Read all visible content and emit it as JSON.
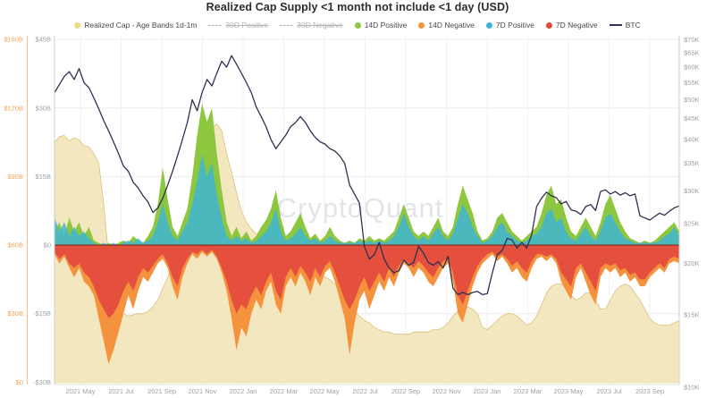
{
  "header": {
    "title": "Realized Cap Supply <1 month not include <1 day (USD)"
  },
  "watermark": "CryptoQuant",
  "legend": {
    "items": [
      {
        "label": "Realized Cap - Age Bands 1d-1m",
        "color": "#ecd98a",
        "type": "dot",
        "disabled": false
      },
      {
        "label": "30D Positive",
        "color": "#b7b7b7",
        "type": "dash",
        "disabled": true
      },
      {
        "label": "30D Negative",
        "color": "#b7b7b7",
        "type": "dash",
        "disabled": true
      },
      {
        "label": "14D Positive",
        "color": "#8dc63f",
        "type": "dot",
        "disabled": false
      },
      {
        "label": "14D Negative",
        "color": "#f5923e",
        "type": "dot",
        "disabled": false
      },
      {
        "label": "7D Positive",
        "color": "#3cb4d8",
        "type": "dot",
        "disabled": false
      },
      {
        "label": "7D Negative",
        "color": "#e2493d",
        "type": "dot",
        "disabled": false
      },
      {
        "label": "BTC",
        "color": "#2e3150",
        "type": "line",
        "disabled": false
      }
    ]
  },
  "axes": {
    "left_outer": {
      "color": "#f7a454",
      "labels": [
        "$150B",
        "$120B",
        "$90B",
        "$60B",
        "$30B",
        "$0"
      ]
    },
    "left_inner": {
      "color": "#9ba1a8",
      "labels": [
        "$45B",
        "$30B",
        "$15B",
        "$0",
        "-$15B",
        "-$30B"
      ]
    },
    "right": {
      "color": "#9ba1a8",
      "labels": [
        "$70K",
        "$65K",
        "$60K",
        "$55K",
        "$50K",
        "$45K",
        "$40K",
        "$35K",
        "$30K",
        "$25K",
        "$20K",
        "$15K",
        "$10K"
      ],
      "values_k": [
        70,
        65,
        60,
        55,
        50,
        45,
        40,
        35,
        30,
        25,
        20,
        15,
        10
      ]
    },
    "x": {
      "labels": [
        "2021 May",
        "2021 Jul",
        "2021 Sep",
        "2021 Nov",
        "2022 Jan",
        "2022 Mar",
        "2022 May",
        "2022 Jul",
        "2022 Sep",
        "2022 Nov",
        "2023 Jan",
        "2023 Mar",
        "2023 May",
        "2023 Jul",
        "2023 Sep"
      ]
    }
  },
  "chart_data": {
    "type": "mixed",
    "x_range": "2021 Mar - 2023 Oct, 128 evenly spaced samples",
    "axis_ranges": {
      "realized_usd_b": [
        0,
        150
      ],
      "flow_usd_b": [
        -30,
        45
      ],
      "btc_usd_k_log": [
        10,
        70
      ]
    },
    "grid": true,
    "legend_position": "top",
    "zero_line_color": "#93392c",
    "series": [
      {
        "name": "Realized Cap - Age Bands 1d-1m",
        "type": "area",
        "axis": "realized",
        "fill": "#f1e6ba",
        "stroke": "#d9c27c",
        "values": [
          105,
          107.5,
          108,
          105.5,
          107,
          106,
          103.5,
          103,
          100,
          96,
          78,
          55,
          38,
          32,
          30,
          29,
          29.5,
          30,
          30,
          31,
          33,
          36,
          41,
          46,
          51,
          57,
          65,
          75,
          82,
          92,
          100,
          107,
          111,
          113,
          110,
          100,
          92,
          83,
          75,
          70,
          67,
          65,
          64,
          63,
          61,
          58,
          57,
          56,
          55,
          53,
          52,
          51,
          50,
          49,
          47,
          46,
          45,
          43,
          41,
          37,
          34,
          31,
          29,
          27,
          26,
          24,
          23,
          22,
          22,
          21,
          21,
          21,
          21,
          22,
          22,
          22,
          22,
          23,
          23,
          24,
          26,
          29,
          31,
          32,
          33,
          32,
          30,
          24,
          23,
          25,
          27,
          29,
          30,
          30,
          29,
          27,
          25,
          26,
          29,
          34,
          39,
          42,
          43,
          43,
          41,
          38,
          36,
          37,
          39,
          39,
          36,
          32,
          32,
          36,
          40,
          42,
          43,
          42,
          39,
          36,
          32,
          28,
          26,
          25,
          25,
          25,
          26,
          27
        ]
      },
      {
        "name": "14D Negative",
        "type": "area",
        "axis": "flow",
        "fill": "#f5923e",
        "values": [
          -2,
          -4,
          -2.5,
          -5,
          -7,
          -5,
          -8,
          -9,
          -11,
          -16,
          -21,
          -26,
          -23,
          -19,
          -15,
          -11,
          -14,
          -10,
          -7,
          -8,
          -6,
          -4,
          -3,
          -5,
          -9,
          -12,
          -7,
          -4,
          -2,
          -3,
          -1.5,
          -2.5,
          -1.5,
          -3,
          -6,
          -10,
          -16,
          -23,
          -18,
          -20,
          -15,
          -12,
          -14,
          -10,
          -8,
          -13,
          -15,
          -9,
          -7,
          -9,
          -6,
          -8,
          -11,
          -7,
          -9,
          -6,
          -5,
          -8,
          -12,
          -16,
          -24,
          -17,
          -12,
          -10,
          -14,
          -11,
          -8,
          -10,
          -7,
          -9,
          -6,
          -4,
          -5,
          -7,
          -5,
          -6,
          -8,
          -9,
          -7,
          -5,
          -4,
          -8,
          -15,
          -17,
          -13,
          -9,
          -6,
          -4,
          -3,
          -2,
          -3.5,
          -2.5,
          -4,
          -6,
          -5,
          -7,
          -8,
          -5,
          -3,
          -2.5,
          -3.5,
          -2.5,
          -4,
          -8,
          -10,
          -12,
          -7,
          -5,
          -8,
          -11,
          -13,
          -7,
          -5,
          -6,
          -5,
          -7,
          -6,
          -8,
          -7,
          -9,
          -9,
          -7,
          -6,
          -5,
          -6,
          -4,
          -3.5,
          -4
        ]
      },
      {
        "name": "7D Negative",
        "type": "area",
        "axis": "flow",
        "fill": "#e2493d",
        "values": [
          -1.5,
          -3,
          -2,
          -4,
          -5,
          -4,
          -6,
          -7,
          -9,
          -12,
          -14,
          -16,
          -15,
          -13,
          -10,
          -8,
          -10,
          -7,
          -5,
          -6,
          -4.5,
          -3,
          -2,
          -4,
          -7,
          -9,
          -5,
          -3,
          -1.5,
          -2,
          -1,
          -2,
          -1,
          -2.5,
          -5,
          -8,
          -12,
          -15,
          -13,
          -14,
          -11,
          -9,
          -11,
          -8,
          -6,
          -10,
          -12,
          -7,
          -5,
          -7,
          -4.5,
          -6,
          -8,
          -5,
          -7,
          -4.5,
          -3.5,
          -6,
          -9,
          -12,
          -14,
          -12,
          -9,
          -7,
          -10,
          -8,
          -6,
          -8,
          -5,
          -7,
          -4.5,
          -3,
          -4,
          -5,
          -3.5,
          -4.5,
          -6,
          -7,
          -5,
          -3.5,
          -3,
          -6,
          -11,
          -13,
          -10,
          -7,
          -4.5,
          -3,
          -2,
          -1.5,
          -2.5,
          -2,
          -3,
          -4.5,
          -3.5,
          -5,
          -6,
          -3.5,
          -2,
          -2,
          -2.5,
          -2,
          -3,
          -6,
          -7.5,
          -9,
          -5,
          -4,
          -6,
          -8,
          -10,
          -5,
          -4,
          -4.5,
          -4,
          -5.5,
          -5,
          -6.5,
          -6,
          -7.5,
          -7.5,
          -6,
          -5,
          -4,
          -5,
          -3,
          -2.5,
          -3
        ]
      },
      {
        "name": "14D Positive",
        "type": "area",
        "axis": "flow",
        "fill": "#8dc63f",
        "values": [
          3,
          5,
          2,
          6,
          3,
          5,
          2,
          4,
          1,
          0.5,
          0,
          0.5,
          0,
          0.5,
          1,
          0.5,
          2,
          1,
          0.5,
          2,
          4,
          9,
          17,
          10,
          4,
          2,
          5,
          8,
          15,
          24,
          31,
          27,
          30,
          20,
          12,
          5,
          2,
          4,
          1.5,
          3,
          1,
          2,
          4,
          5.5,
          8,
          12,
          6,
          2,
          3,
          5,
          7,
          4,
          1.5,
          2.5,
          1,
          2,
          4,
          2,
          1,
          0.5,
          1,
          0.5,
          1.5,
          1,
          2,
          1,
          1.5,
          1,
          2,
          3,
          6,
          9,
          6,
          3,
          2,
          3,
          2,
          4,
          6,
          3,
          2,
          4,
          9,
          13,
          10,
          7,
          3,
          1,
          1.5,
          3,
          6,
          7,
          5,
          3,
          2,
          1,
          2,
          3,
          4,
          7,
          11,
          13,
          9,
          10,
          6,
          3,
          2,
          4,
          6,
          4,
          2,
          5,
          9,
          11,
          8,
          5,
          3,
          1.5,
          1,
          0.5,
          1,
          0.5,
          1,
          2,
          3,
          4,
          5,
          3
        ]
      },
      {
        "name": "7D Positive",
        "type": "area",
        "axis": "flow",
        "fill": "#3cb4d8",
        "values": [
          6,
          3,
          5,
          2,
          4,
          2,
          3,
          1.5,
          0.5,
          0,
          0.5,
          0,
          0.5,
          0,
          0.5,
          1,
          0.5,
          1.5,
          0.5,
          1,
          2,
          5,
          9,
          5,
          2,
          1,
          3,
          5,
          9,
          14,
          20,
          15,
          18,
          11,
          6,
          2,
          1,
          2,
          1,
          1.5,
          0.5,
          1,
          2,
          3,
          5,
          8,
          3,
          1,
          1.5,
          2.5,
          4,
          2,
          1,
          1.5,
          0.5,
          1,
          2,
          1,
          0.5,
          0.5,
          0.5,
          0.5,
          1,
          0.5,
          1,
          0.5,
          1,
          0.5,
          1,
          2,
          4,
          7,
          4,
          2,
          1,
          2,
          1,
          2.5,
          4,
          2,
          1,
          2.5,
          6,
          9,
          7,
          4,
          2,
          0.5,
          1,
          2,
          4,
          5,
          3,
          2,
          1,
          0.5,
          1,
          2,
          2.5,
          4,
          7,
          8,
          5,
          6,
          3,
          1.5,
          1,
          2.5,
          4,
          2,
          1,
          3,
          6,
          7,
          5,
          3,
          1.5,
          1,
          0.5,
          0.5,
          0.5,
          0.5,
          0.5,
          1,
          2,
          2.5,
          4,
          2
        ]
      },
      {
        "name": "BTC",
        "type": "line",
        "axis": "btc",
        "stroke": "#2e3150",
        "values": [
          52,
          54.5,
          57,
          58.5,
          56,
          59.5,
          55,
          53.5,
          50.5,
          47.5,
          44.5,
          42,
          39.5,
          37,
          34.5,
          33.5,
          31.5,
          30.5,
          29.2,
          28.2,
          26.6,
          27.3,
          28.8,
          31,
          33.5,
          36.5,
          40,
          44,
          50,
          47,
          52,
          56,
          54,
          58,
          62,
          60,
          64,
          61,
          58,
          55,
          52,
          48,
          45.5,
          43,
          40,
          38,
          39.5,
          41,
          43,
          44,
          45.5,
          44,
          42,
          40.5,
          39.5,
          39,
          38,
          37.5,
          36.5,
          35,
          31,
          29.5,
          28,
          22,
          20.5,
          21,
          22.5,
          20.5,
          19.5,
          19,
          19.2,
          20.4,
          19.8,
          20.1,
          22,
          21.2,
          20.1,
          19.8,
          20.2,
          19.5,
          20.8,
          17.4,
          16.8,
          17,
          16.8,
          17,
          17.1,
          16.8,
          16.9,
          19,
          21,
          21.5,
          23,
          22.8,
          21.8,
          22.5,
          21.8,
          23.5,
          27.5,
          28.8,
          29.8,
          29.2,
          28.9,
          27.9,
          28.3,
          27,
          26.8,
          26.3,
          27.5,
          27.8,
          26.9,
          29.9,
          30.2,
          29.5,
          29.9,
          29.3,
          29.7,
          29.2,
          29.5,
          26.1,
          25.8,
          25.5,
          26,
          26.5,
          26.2,
          26.8,
          27.3,
          27.6
        ]
      }
    ]
  }
}
